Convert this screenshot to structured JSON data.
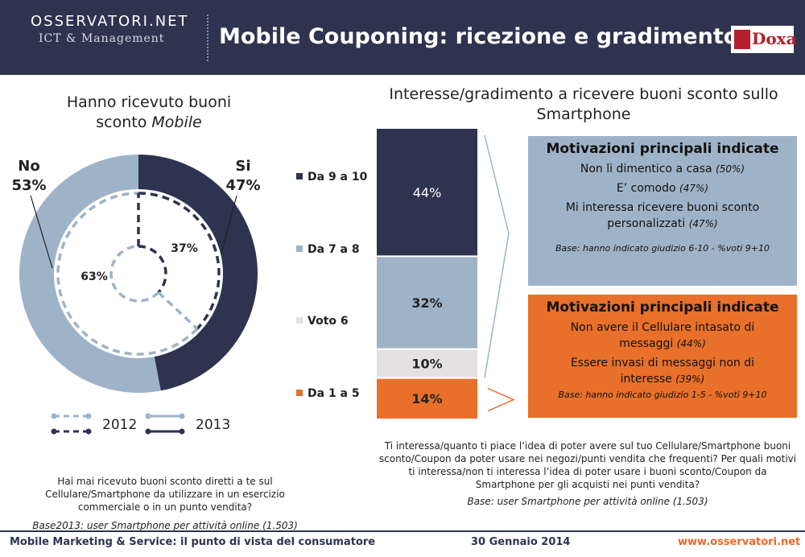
{
  "header": {
    "logo_main": "OSSERVATORI.NET",
    "logo_sub": "ICT & Management",
    "title": "Mobile Couponing: ricezione e gradimento",
    "partner": "Doxa"
  },
  "left_panel": {
    "title_line1": "Hanno ricevuto buoni",
    "title_line2_plain": "sconto ",
    "title_line2_italic": "Mobile",
    "legend_2012": "2012",
    "legend_2013": "2013",
    "question": "Hai mai ricevuto buoni sconto diretti a te sul Cellulare/Smartphone da utilizzare in un esercizio commerciale o in un punto vendita?",
    "base": "Base2013: user Smartphone per attività online (1.503)"
  },
  "right_panel": {
    "title": "Interesse/gradimento a ricevere buoni sconto sullo Smartphone",
    "question": "Ti interessa/quanto ti piace l’idea di poter avere sul tuo Cellulare/Smartphone buoni sconto/Coupon da poter usare nei negozi/punti vendita che frequenti? Per quali motivi ti interessa/non ti interessa l’idea di poter usare i buoni sconto/Coupon da Smartphone per gli acquisti nei punti vendita?",
    "base": "Base: user Smartphone per attività online (1.503)"
  },
  "motivations_positive": {
    "title": "Motivazioni principali indicate",
    "items": [
      {
        "text": "Non li dimentico a casa",
        "pct": "(50%)"
      },
      {
        "text": "E’ comodo",
        "pct": "(47%)"
      },
      {
        "text": "Mi interessa ricevere buoni sconto personalizzati",
        "pct": "(47%)"
      }
    ],
    "base": "Base: hanno indicato giudizio 6-10 - %voti 9+10"
  },
  "motivations_negative": {
    "title": "Motivazioni principali indicate",
    "items": [
      {
        "text": "Non avere il Cellulare intasato di messaggi",
        "pct": "(44%)"
      },
      {
        "text": "Essere invasi di messaggi non di interesse",
        "pct": "(39%)"
      }
    ],
    "base": "Base: hanno indicato giudizio 1-5 - %voti 9+10"
  },
  "footer": {
    "left": "Mobile Marketing & Service: il punto di vista del consumatore",
    "date": "30 Gennaio 2014",
    "url": "www.osservatori.net"
  },
  "chart_data": [
    {
      "type": "pie",
      "variant": "donut",
      "series": [
        {
          "name": "2013",
          "labels": [
            "Si",
            "No"
          ],
          "values": [
            47,
            53
          ],
          "value_labels": [
            "47%",
            "53%"
          ]
        },
        {
          "name": "2012",
          "labels": [
            "Si",
            "No"
          ],
          "values": [
            37,
            63
          ],
          "value_labels": [
            "37%",
            "63%"
          ]
        }
      ],
      "colors": {
        "si": "#2e3350",
        "no": "#9fb3c8"
      }
    },
    {
      "type": "bar",
      "stacked": true,
      "categories": [
        "Da 9 a 10",
        "Da 7 a 8",
        "Voto 6",
        "Da 1 a 5"
      ],
      "values": [
        44,
        32,
        10,
        14
      ],
      "value_labels": [
        "44%",
        "32%",
        "10%",
        "14%"
      ],
      "colors": [
        "#2e3350",
        "#9fb3c8",
        "#e3e1e1",
        "#e8702a"
      ],
      "legend_position": "left"
    }
  ],
  "colors": {
    "navy": "#2e3350",
    "light_blue": "#9fb3c8",
    "light_gray": "#e3e1e1",
    "orange": "#e8702a",
    "positive_panel": "#9fb3c8",
    "negative_panel": "#e8702a"
  }
}
